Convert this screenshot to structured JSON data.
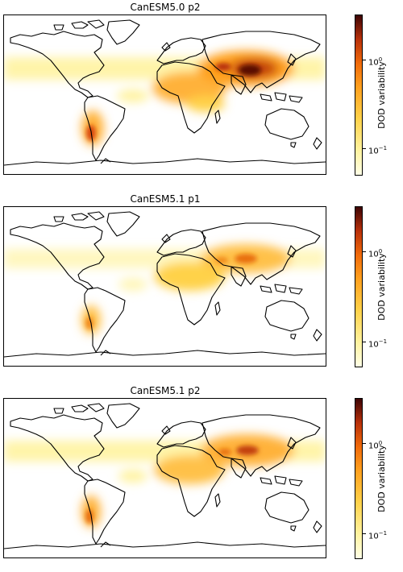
{
  "panels": [
    {
      "title": "CanESM5.0 p2",
      "intensity": 1.0
    },
    {
      "title": "CanESM5.1 p1",
      "intensity": 0.55
    },
    {
      "title": "CanESM5.1 p2",
      "intensity": 0.7
    }
  ],
  "colorbar": {
    "label": "DOD variability",
    "scale": "log",
    "ticks": [
      {
        "base": "10",
        "exp": "0"
      },
      {
        "base": "10",
        "exp": "−1"
      }
    ]
  },
  "colors": {
    "low": "#ffffe6",
    "mid": "#ffa01e",
    "high": "#3d0505",
    "coastline": "#000000"
  }
}
